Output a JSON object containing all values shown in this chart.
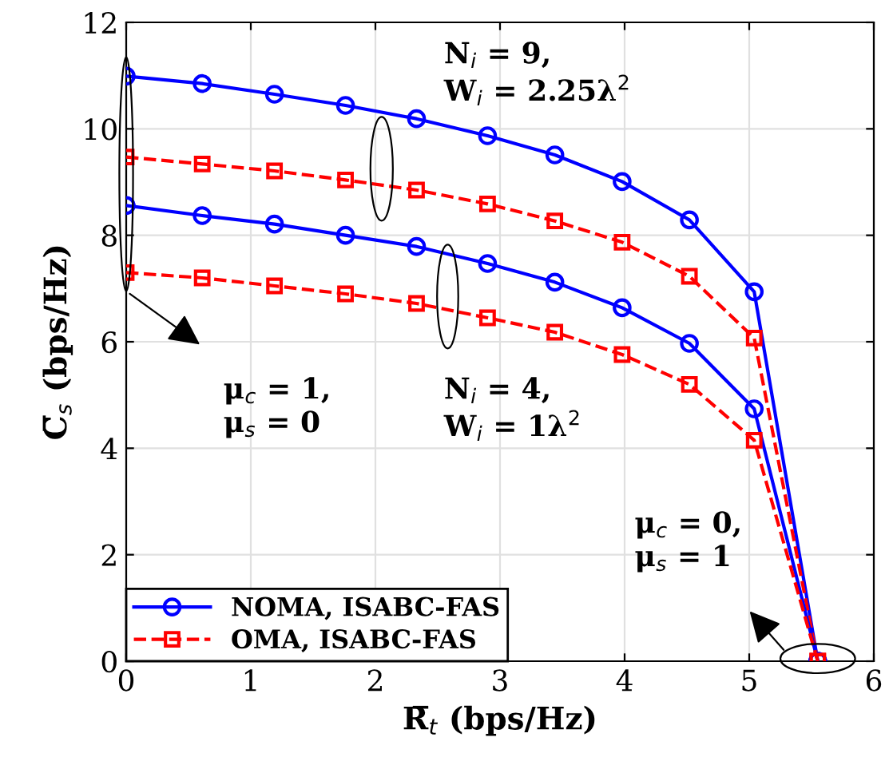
{
  "chart_data": {
    "type": "line",
    "xlabel": "R̅$_{t}$ (bps/Hz)",
    "ylabel": "C̅$_{s}$ (bps/Hz)",
    "x": [
      0.0,
      0.61,
      1.19,
      1.76,
      2.33,
      2.9,
      3.44,
      3.98,
      4.52,
      5.04,
      5.55
    ],
    "series": [
      {
        "name": "NOMA, ISABC-FAS",
        "color": "#0000ff",
        "marker": "circle",
        "line_style": "solid",
        "values": [
          10.99,
          10.85,
          10.65,
          10.44,
          10.19,
          9.87,
          9.51,
          9.01,
          8.29,
          6.94,
          0
        ]
      },
      {
        "name": "OMA, ISABC-FAS",
        "color": "#ff0000",
        "marker": "square",
        "line_style": "dashed",
        "values": [
          9.47,
          9.34,
          9.21,
          9.04,
          8.85,
          8.59,
          8.27,
          7.87,
          7.23,
          6.07,
          0
        ]
      },
      {
        "color": "#0000ff",
        "marker": "circle",
        "line_style": "solid",
        "values": [
          8.56,
          8.37,
          8.21,
          8.0,
          7.79,
          7.47,
          7.12,
          6.64,
          5.97,
          4.74,
          0
        ]
      },
      {
        "color": "#ff0000",
        "marker": "square",
        "line_style": "dashed",
        "values": [
          7.3,
          7.2,
          7.05,
          6.9,
          6.72,
          6.45,
          6.18,
          5.76,
          5.2,
          4.15,
          0
        ]
      }
    ],
    "xlim": [
      0,
      6
    ],
    "xticks": [
      0,
      1,
      2,
      3,
      4,
      5,
      6
    ],
    "ylim": [
      0,
      12
    ],
    "yticks": [
      0,
      2,
      4,
      6,
      8,
      10,
      12
    ],
    "grid": true,
    "legend": "bottom left",
    "annotations": [
      "N$_{i}$ = 9,\nW$_{i}$ = 2.25λ$^{2}$",
      "N$_{i}$ = 4,\nW$_{i}$ = 1λ$^{2}$",
      "μ$_{c}$ = 1,\nμ$_{s}$ = 0",
      "μ$_{c}$ = 0,\nμ$_{s}$ = 1"
    ]
  }
}
